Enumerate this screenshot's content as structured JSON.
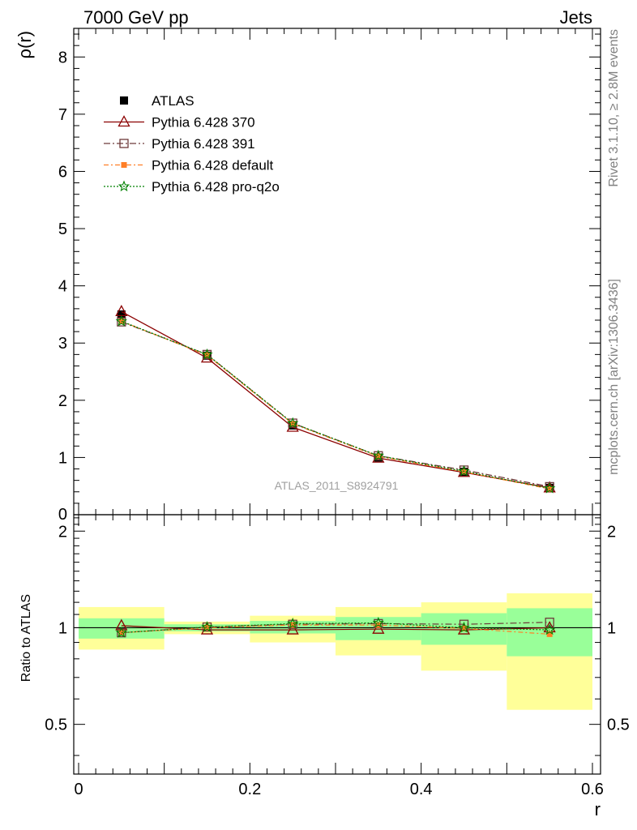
{
  "header": {
    "left": "7000 GeV pp",
    "right": "Jets"
  },
  "side_labels": {
    "upper": "Rivet 3.1.10, ≥ 2.8M events",
    "lower": "mcplots.cern.ch [arXiv:1306.3436]"
  },
  "watermark": "ATLAS_2011_S8924791",
  "chart_data": [
    {
      "type": "line",
      "panel": "main",
      "ylabel": "ρ(r)",
      "xlim": [
        0,
        0.6
      ],
      "ylim": [
        0,
        8.5
      ],
      "yticks": [
        0,
        1,
        2,
        3,
        4,
        5,
        6,
        7,
        8
      ],
      "ytick_labels": [
        "0",
        "1",
        "2",
        "3",
        "4",
        "5",
        "6",
        "7",
        "8"
      ],
      "legend_position": "top-left",
      "x": [
        0.05,
        0.15,
        0.25,
        0.35,
        0.45,
        0.55
      ],
      "series": [
        {
          "name": "ATLAS",
          "color": "#000000",
          "values": [
            3.5,
            2.78,
            1.56,
            1.0,
            0.75,
            0.47
          ]
        },
        {
          "name": "Pythia 6.428 370",
          "color": "#8b0000",
          "values": [
            3.55,
            2.74,
            1.53,
            0.99,
            0.74,
            0.47
          ]
        },
        {
          "name": "Pythia 6.428 391",
          "color": "#6e3a3a",
          "values": [
            3.37,
            2.8,
            1.6,
            1.03,
            0.78,
            0.49
          ]
        },
        {
          "name": "Pythia 6.428 default",
          "color": "#ff7f27",
          "values": [
            3.38,
            2.79,
            1.59,
            1.02,
            0.75,
            0.45
          ]
        },
        {
          "name": "Pythia 6.428 pro-q2o",
          "color": "#008000",
          "values": [
            3.38,
            2.8,
            1.6,
            1.03,
            0.76,
            0.46
          ]
        }
      ]
    },
    {
      "type": "line",
      "panel": "ratio",
      "xlabel": "r",
      "ylabel": "Ratio to ATLAS",
      "xlim": [
        0,
        0.6
      ],
      "xticks": [
        0,
        0.2,
        0.4,
        0.6
      ],
      "xtick_labels": [
        "0",
        "0.2",
        "0.4",
        "0.6"
      ],
      "ylim": [
        0.35,
        2.25
      ],
      "yticks": [
        0.5,
        1,
        2
      ],
      "ytick_labels": [
        "0.5",
        "1",
        "2"
      ],
      "x": [
        0.05,
        0.15,
        0.25,
        0.35,
        0.45,
        0.55
      ],
      "bins": [
        [
          0,
          0.1
        ],
        [
          0.1,
          0.2
        ],
        [
          0.2,
          0.3
        ],
        [
          0.3,
          0.4
        ],
        [
          0.4,
          0.5
        ],
        [
          0.5,
          0.6
        ]
      ],
      "band_inner": [
        [
          0.925,
          1.07
        ],
        [
          0.975,
          1.025
        ],
        [
          0.96,
          1.05
        ],
        [
          0.915,
          1.08
        ],
        [
          0.885,
          1.11
        ],
        [
          0.815,
          1.15
        ]
      ],
      "band_outer": [
        [
          0.855,
          1.16
        ],
        [
          0.955,
          1.045
        ],
        [
          0.9,
          1.09
        ],
        [
          0.82,
          1.16
        ],
        [
          0.735,
          1.2
        ],
        [
          0.555,
          1.28
        ]
      ],
      "series": [
        {
          "name": "Pythia 6.428 370",
          "color": "#8b0000",
          "values": [
            1.015,
            0.985,
            0.985,
            0.99,
            0.985,
            1.0
          ]
        },
        {
          "name": "Pythia 6.428 391",
          "color": "#6e3a3a",
          "values": [
            0.965,
            1.005,
            1.025,
            1.03,
            1.025,
            1.04
          ]
        },
        {
          "name": "Pythia 6.428 default",
          "color": "#ff7f27",
          "values": [
            0.965,
            1.0,
            1.02,
            1.02,
            0.995,
            0.955
          ]
        },
        {
          "name": "Pythia 6.428 pro-q2o",
          "color": "#008000",
          "values": [
            0.965,
            1.005,
            1.03,
            1.035,
            1.0,
            0.985
          ]
        }
      ]
    }
  ]
}
